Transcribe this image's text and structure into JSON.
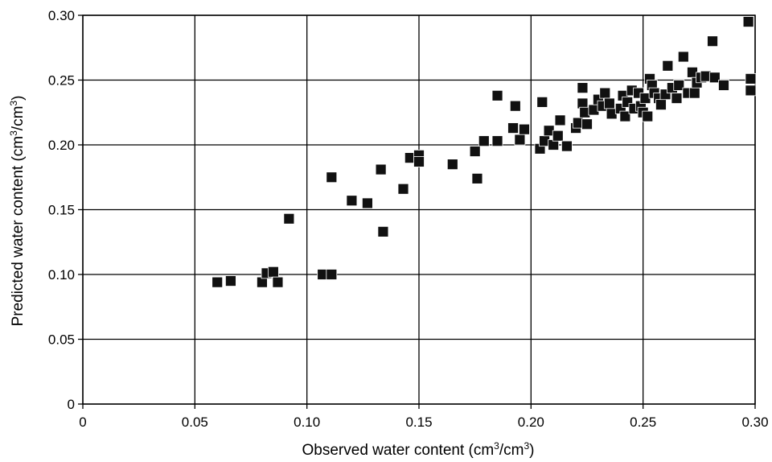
{
  "chart_data": {
    "type": "scatter",
    "title": "",
    "xlabel": {
      "pre": "Observed water content (cm",
      "sup1": "3",
      "mid": "/cm",
      "sup2": "3",
      "post": ")"
    },
    "ylabel": {
      "pre": "Predicted water content (cm",
      "sup1": "3",
      "mid": "/cm",
      "sup2": "3",
      "post": ")"
    },
    "xlim": [
      0,
      0.3
    ],
    "ylim": [
      0,
      0.3
    ],
    "grid": true,
    "marker": "square",
    "marker_color": "#111111",
    "x_ticks": [
      {
        "value": 0,
        "label": "0"
      },
      {
        "value": 0.05,
        "label": "0.05"
      },
      {
        "value": 0.1,
        "label": "0.10"
      },
      {
        "value": 0.15,
        "label": "0.15"
      },
      {
        "value": 0.2,
        "label": "0.20"
      },
      {
        "value": 0.25,
        "label": "0.25"
      },
      {
        "value": 0.3,
        "label": "0.30"
      }
    ],
    "y_ticks": [
      {
        "value": 0,
        "label": "0"
      },
      {
        "value": 0.05,
        "label": "0.05"
      },
      {
        "value": 0.1,
        "label": "0.10"
      },
      {
        "value": 0.15,
        "label": "0.15"
      },
      {
        "value": 0.2,
        "label": "0.20"
      },
      {
        "value": 0.25,
        "label": "0.25"
      },
      {
        "value": 0.3,
        "label": "0.30"
      }
    ],
    "points": [
      [
        0.06,
        0.094
      ],
      [
        0.066,
        0.095
      ],
      [
        0.08,
        0.094
      ],
      [
        0.082,
        0.101
      ],
      [
        0.085,
        0.102
      ],
      [
        0.087,
        0.094
      ],
      [
        0.092,
        0.143
      ],
      [
        0.107,
        0.1
      ],
      [
        0.111,
        0.1
      ],
      [
        0.111,
        0.175
      ],
      [
        0.12,
        0.157
      ],
      [
        0.127,
        0.155
      ],
      [
        0.133,
        0.181
      ],
      [
        0.134,
        0.133
      ],
      [
        0.143,
        0.166
      ],
      [
        0.146,
        0.19
      ],
      [
        0.15,
        0.192
      ],
      [
        0.15,
        0.187
      ],
      [
        0.165,
        0.185
      ],
      [
        0.175,
        0.195
      ],
      [
        0.176,
        0.174
      ],
      [
        0.179,
        0.203
      ],
      [
        0.185,
        0.238
      ],
      [
        0.185,
        0.203
      ],
      [
        0.192,
        0.213
      ],
      [
        0.193,
        0.23
      ],
      [
        0.195,
        0.204
      ],
      [
        0.197,
        0.212
      ],
      [
        0.204,
        0.197
      ],
      [
        0.205,
        0.233
      ],
      [
        0.206,
        0.203
      ],
      [
        0.208,
        0.211
      ],
      [
        0.21,
        0.2
      ],
      [
        0.212,
        0.207
      ],
      [
        0.213,
        0.219
      ],
      [
        0.216,
        0.199
      ],
      [
        0.22,
        0.213
      ],
      [
        0.221,
        0.217
      ],
      [
        0.223,
        0.244
      ],
      [
        0.223,
        0.232
      ],
      [
        0.224,
        0.225
      ],
      [
        0.225,
        0.216
      ],
      [
        0.228,
        0.227
      ],
      [
        0.23,
        0.235
      ],
      [
        0.232,
        0.23
      ],
      [
        0.233,
        0.24
      ],
      [
        0.235,
        0.232
      ],
      [
        0.236,
        0.224
      ],
      [
        0.24,
        0.228
      ],
      [
        0.241,
        0.238
      ],
      [
        0.242,
        0.222
      ],
      [
        0.243,
        0.233
      ],
      [
        0.245,
        0.242
      ],
      [
        0.246,
        0.228
      ],
      [
        0.248,
        0.24
      ],
      [
        0.249,
        0.23
      ],
      [
        0.25,
        0.225
      ],
      [
        0.251,
        0.236
      ],
      [
        0.252,
        0.222
      ],
      [
        0.253,
        0.251
      ],
      [
        0.254,
        0.246
      ],
      [
        0.255,
        0.24
      ],
      [
        0.257,
        0.236
      ],
      [
        0.258,
        0.231
      ],
      [
        0.26,
        0.239
      ],
      [
        0.261,
        0.261
      ],
      [
        0.263,
        0.244
      ],
      [
        0.265,
        0.236
      ],
      [
        0.266,
        0.246
      ],
      [
        0.268,
        0.268
      ],
      [
        0.27,
        0.24
      ],
      [
        0.272,
        0.256
      ],
      [
        0.273,
        0.24
      ],
      [
        0.274,
        0.248
      ],
      [
        0.276,
        0.252
      ],
      [
        0.278,
        0.253
      ],
      [
        0.281,
        0.28
      ],
      [
        0.282,
        0.252
      ],
      [
        0.286,
        0.246
      ],
      [
        0.297,
        0.295
      ],
      [
        0.298,
        0.251
      ],
      [
        0.298,
        0.242
      ]
    ]
  }
}
